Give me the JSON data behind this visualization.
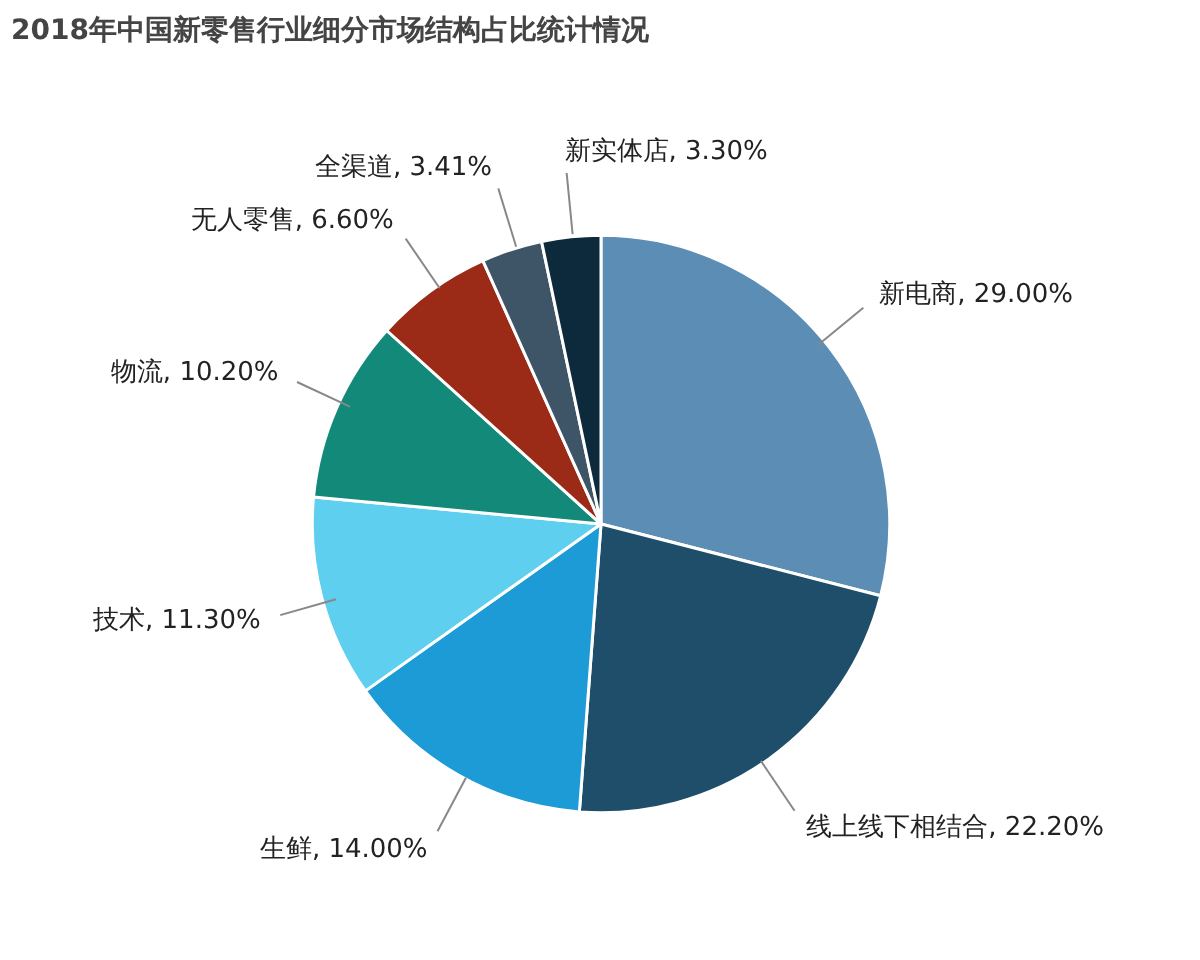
{
  "chart_data": {
    "type": "pie",
    "title": "2018年中国新零售行业细分市场结构占比统计情况",
    "categories": [
      "新电商",
      "线上线下相结合",
      "生鲜",
      "技术",
      "物流",
      "无人零售",
      "全渠道",
      "新实体店"
    ],
    "values": [
      29.0,
      22.2,
      14.0,
      11.3,
      10.2,
      6.6,
      3.41,
      3.3
    ],
    "value_labels": [
      "29.00%",
      "22.20%",
      "14.00%",
      "11.30%",
      "10.20%",
      "6.60%",
      "3.41%",
      "3.30%"
    ],
    "colors": [
      "#5b8db5",
      "#1f4e6b",
      "#1d9bd6",
      "#5ecfef",
      "#13897a",
      "#9b2a17",
      "#3d5566",
      "#0d2a3c"
    ]
  }
}
